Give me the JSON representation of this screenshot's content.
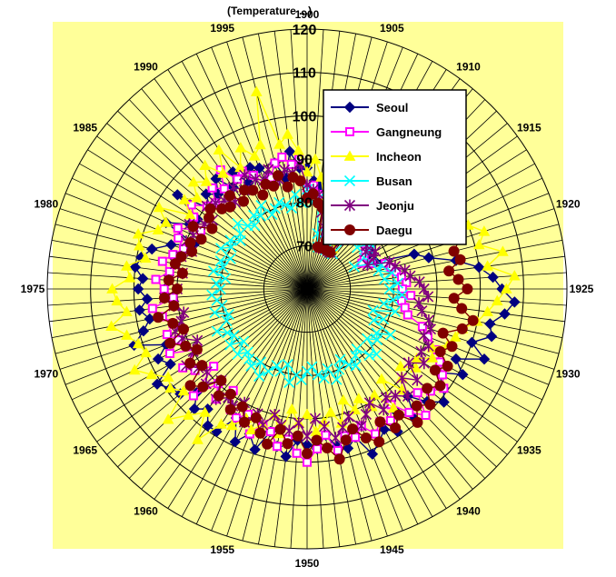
{
  "chart_data": {
    "type": "radar",
    "title_partial": "(Temperature ...)",
    "angle_labels": [
      "1900",
      "1905",
      "1910",
      "1915",
      "1920",
      "1925",
      "1930",
      "1935",
      "1940",
      "1945",
      "1950",
      "1955",
      "1960",
      "1965",
      "1970",
      "1975",
      "1980",
      "1985",
      "1990",
      "1995"
    ],
    "radial_ticks": [
      "70",
      "80",
      "90",
      "100",
      "110",
      "120"
    ],
    "rlim": [
      60,
      120
    ],
    "grid": true,
    "legend_position": "top-right",
    "plot_background": "#FFFF99",
    "series": [
      {
        "name": "Seoul",
        "color": "#000080",
        "marker": "diamond",
        "values": [
          88,
          85,
          84,
          82,
          70,
          70,
          70,
          71,
          71,
          77,
          76,
          78,
          78,
          78,
          79,
          78,
          77,
          76,
          75,
          77,
          86,
          89,
          95,
          100,
          103,
          105,
          108,
          106,
          103,
          104,
          100,
          104,
          98,
          101,
          96,
          99,
          101,
          98,
          94,
          99,
          95,
          99,
          97,
          99,
          101,
          96,
          98,
          97,
          94,
          97,
          96,
          95,
          99,
          97,
          94,
          99,
          96,
          99,
          94,
          99,
          99,
          96,
          98,
          95,
          98,
          99,
          101,
          96,
          98,
          95,
          102,
          99,
          97,
          99,
          97,
          99,
          98,
          100,
          99,
          97,
          93,
          88,
          96,
          91,
          90,
          97,
          89,
          92,
          90,
          93,
          89,
          92,
          88,
          91,
          90,
          87,
          90,
          86,
          92,
          88
        ]
      },
      {
        "name": "Gangneung",
        "color": "#FF00FF",
        "marker": "square",
        "values": [
          83,
          84,
          82,
          80,
          80,
          70,
          70,
          70,
          70,
          70,
          76,
          77,
          78,
          79,
          78,
          77,
          76,
          75,
          74,
          76,
          79,
          80,
          81,
          82,
          83,
          82,
          84,
          82,
          83,
          84,
          88,
          90,
          93,
          95,
          97,
          99,
          97,
          95,
          100,
          97,
          93,
          96,
          95,
          97,
          94,
          96,
          95,
          98,
          94,
          97,
          100,
          98,
          95,
          97,
          94,
          93,
          96,
          92,
          94,
          93,
          89,
          93,
          90,
          96,
          88,
          92,
          94,
          89,
          95,
          92,
          94,
          92,
          94,
          96,
          91,
          93,
          95,
          92,
          94,
          92,
          90,
          92,
          93,
          88,
          91,
          93,
          90,
          89,
          92,
          90,
          94,
          90,
          91,
          89,
          86,
          87,
          90,
          91,
          89,
          90
        ]
      },
      {
        "name": "Incheon",
        "color": "#FFFF00",
        "marker": "triangle",
        "values": [
          87,
          90,
          86,
          81,
          70,
          70,
          70,
          71,
          70,
          71,
          79,
          76,
          82,
          80,
          79,
          81,
          82,
          88,
          94,
          100,
          103,
          101,
          106,
          102,
          108,
          106,
          104,
          102,
          100,
          97,
          96,
          95,
          92,
          93,
          90,
          91,
          88,
          90,
          92,
          87,
          94,
          89,
          91,
          88,
          90,
          87,
          92,
          89,
          91,
          93,
          89,
          91,
          88,
          94,
          90,
          93,
          95,
          93,
          96,
          97,
          103,
          97,
          100,
          104,
          97,
          99,
          98,
          101,
          104,
          100,
          101,
          103,
          106,
          102,
          104,
          105,
          101,
          102,
          98,
          100,
          101,
          97,
          96,
          99,
          92,
          95,
          93,
          96,
          94,
          97,
          93,
          98,
          92,
          96,
          93,
          95,
          107,
          94,
          96,
          92
        ]
      },
      {
        "name": "Busan",
        "color": "#00FFFF",
        "marker": "x",
        "values": [
          83,
          80,
          81,
          73,
          70,
          70,
          72,
          70,
          70,
          70,
          70,
          76,
          78,
          77,
          75,
          78,
          77,
          75,
          72,
          76,
          78,
          77,
          80,
          78,
          81,
          79,
          82,
          80,
          78,
          81,
          76,
          79,
          77,
          82,
          79,
          80,
          78,
          82,
          81,
          78,
          79,
          81,
          80,
          78,
          80,
          82,
          79,
          81,
          80,
          78,
          79,
          81,
          80,
          82,
          78,
          80,
          79,
          81,
          83,
          80,
          82,
          81,
          80,
          82,
          79,
          82,
          80,
          81,
          83,
          80,
          79,
          82,
          80,
          81,
          82,
          80,
          81,
          79,
          82,
          80,
          81,
          79,
          82,
          80,
          81,
          79,
          80,
          82,
          80,
          79,
          81,
          80,
          82,
          79,
          80,
          81,
          80,
          79,
          82,
          80
        ]
      },
      {
        "name": "Jeonju",
        "color": "#800080",
        "marker": "star",
        "values": [
          84,
          83,
          82,
          78,
          75,
          70,
          70,
          71,
          70,
          70,
          74,
          76,
          77,
          78,
          79,
          77,
          76,
          78,
          77,
          75,
          80,
          81,
          83,
          84,
          86,
          87,
          88,
          86,
          87,
          89,
          90,
          89,
          91,
          90,
          92,
          89,
          93,
          90,
          94,
          92,
          91,
          93,
          90,
          92,
          94,
          91,
          93,
          95,
          92,
          90,
          94,
          91,
          93,
          92,
          90,
          93,
          91,
          94,
          90,
          92,
          91,
          93,
          89,
          92,
          90,
          91,
          93,
          90,
          88,
          91,
          92,
          90,
          89,
          91,
          93,
          90,
          92,
          89,
          91,
          90,
          88,
          90,
          89,
          91,
          88,
          87,
          90,
          89,
          88,
          86,
          89,
          87,
          90,
          88,
          87,
          89,
          86,
          88,
          87,
          89
        ]
      },
      {
        "name": "Daegu",
        "color": "#800000",
        "marker": "circle",
        "values": [
          81,
          82,
          80,
          79,
          70,
          70,
          72,
          70,
          70,
          70,
          78,
          84,
          86,
          88,
          90,
          92,
          94,
          95,
          96,
          98,
          97,
          95,
          96,
          93,
          95,
          97,
          94,
          96,
          99,
          97,
          93,
          96,
          94,
          97,
          95,
          98,
          96,
          99,
          97,
          100,
          96,
          98,
          95,
          99,
          97,
          94,
          96,
          100,
          97,
          95,
          98,
          94,
          96,
          93,
          97,
          95,
          92,
          94,
          91,
          93,
          90,
          92,
          89,
          93,
          95,
          90,
          92,
          89,
          91,
          94,
          90,
          92,
          95,
          91,
          93,
          90,
          92,
          89,
          91,
          90,
          88,
          89,
          87,
          90,
          86,
          88,
          89,
          87,
          86,
          88,
          85,
          87,
          86,
          84,
          86,
          85,
          87,
          84,
          86,
          85
        ]
      }
    ]
  }
}
